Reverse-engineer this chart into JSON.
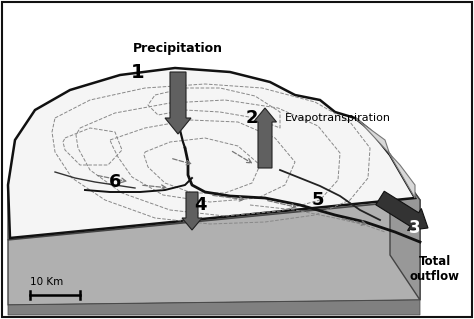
{
  "background_color": "#ffffff",
  "border_color": "#111111",
  "labels": {
    "precipitation": "Precipitation",
    "evapotranspiration": "Evapotranspiration",
    "total_outflow": "Total\noutflow",
    "scale": "10 Km",
    "num1": "1",
    "num2": "2",
    "num3": "3",
    "num4": "4",
    "num5": "5",
    "num6": "6"
  },
  "arrow_color": "#555555",
  "text_color": "#000000",
  "dashed_color": "#888888",
  "block_top_color": "#c8c8c8",
  "block_front_color": "#b0b0b0",
  "block_right_color": "#989898",
  "block_bottom_color": "#808080",
  "terrain_fill": "#f5f5f5",
  "terrain_edge": "#111111",
  "slope_fill": "#d0d0d0"
}
